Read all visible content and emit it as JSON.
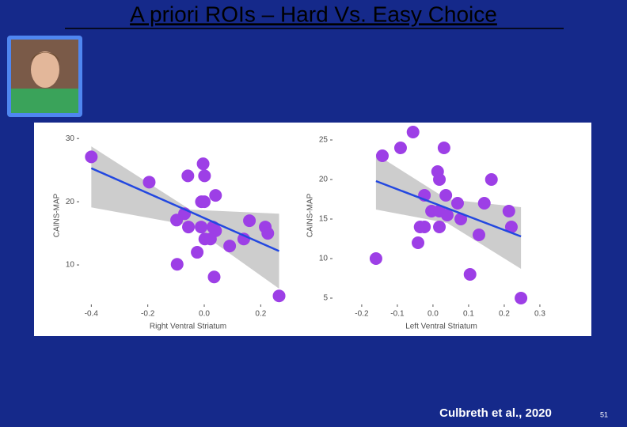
{
  "slide": {
    "title": "A priori ROIs – Hard Vs. Easy Choice",
    "citation": "Culbreth et al., 2020",
    "page_number": "51"
  },
  "chart_data": [
    {
      "type": "scatter",
      "x_label": "Right Ventral Striatum",
      "y_label": "CAINS-MAP",
      "xlim": [
        -0.443,
        0.328
      ],
      "ylim": [
        3.75,
        31.9
      ],
      "xticks": [
        -0.4,
        -0.2,
        {
          "value": 0,
          "label": "0.0"
        },
        0.2
      ],
      "yticks": [
        10,
        20,
        30
      ],
      "point_color": "#9d3fe6",
      "line_color": "#2348e0",
      "band_color": "#b8b8b8",
      "series": [
        {
          "x": [
            -0.4,
            -0.195,
            -0.058,
            -0.004,
            0.001,
            -0.01,
            0,
            0.04,
            -0.07,
            -0.098,
            -0.056,
            -0.011,
            0.031,
            0.04,
            0.002,
            0.022,
            -0.025,
            -0.096,
            0.09,
            0.14,
            0.16,
            0.216,
            0.225,
            0.035,
            0.265
          ],
          "values": [
            27.1,
            23.1,
            24.1,
            26,
            24.1,
            20,
            20,
            21,
            18.1,
            17.1,
            16,
            16,
            16,
            15.4,
            14.1,
            14.1,
            12,
            10.1,
            13,
            14.1,
            17,
            16,
            15,
            8.1,
            5.1
          ]
        }
      ],
      "fit": {
        "x": [
          -0.4,
          0.265
        ],
        "values": [
          25.3,
          12.2
        ]
      },
      "band": {
        "x": [
          -0.4,
          -0.05,
          0.265
        ],
        "upper": [
          28.75,
          18.75,
          18.1
        ],
        "lower": [
          19.1,
          16.25,
          6.25
        ]
      }
    },
    {
      "type": "scatter",
      "x_label": "Left Ventral Striatum",
      "y_label": "CAINS-MAP",
      "xlim": [
        -0.282,
        0.329
      ],
      "ylim": [
        4.2,
        26.7
      ],
      "xticks": [
        -0.2,
        -0.1,
        {
          "value": 0,
          "label": "0.0"
        },
        0.1,
        0.2,
        0.3
      ],
      "yticks": [
        5,
        10,
        15,
        20,
        25
      ],
      "point_color": "#9d3fe6",
      "line_color": "#2348e0",
      "band_color": "#b8b8b8",
      "series": [
        {
          "x": [
            -0.056,
            -0.091,
            -0.142,
            0.031,
            0.013,
            0.018,
            0.164,
            -0.024,
            0.036,
            0.069,
            0.144,
            -0.004,
            0.018,
            0.04,
            0.078,
            0.213,
            -0.036,
            -0.024,
            0.018,
            0.22,
            0.129,
            -0.042,
            -0.16,
            0.104,
            0.247
          ],
          "values": [
            26,
            24,
            23,
            24,
            21,
            20,
            20,
            18,
            18,
            17,
            17,
            16,
            16,
            15.5,
            15,
            16,
            14,
            14,
            14,
            14,
            13,
            12,
            10,
            8,
            5
          ]
        }
      ],
      "fit": {
        "x": [
          -0.16,
          0.247
        ],
        "values": [
          19.8,
          12.8
        ]
      },
      "band": {
        "x": [
          -0.16,
          0.04,
          0.247
        ],
        "upper": [
          23.2,
          17.5,
          16.5
        ],
        "lower": [
          16.2,
          14.5,
          8.7
        ]
      }
    }
  ]
}
